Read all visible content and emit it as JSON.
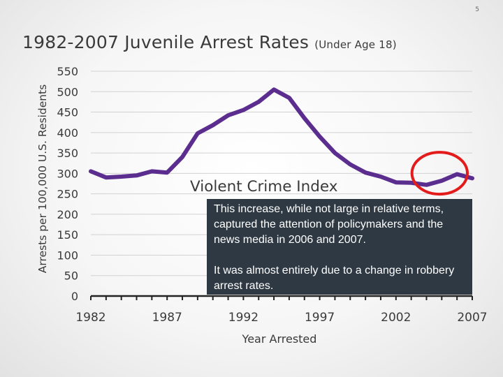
{
  "slide": {
    "number": "5"
  },
  "title": {
    "main": "1982-2007 Juvenile Arrest Rates",
    "sub": "(Under Age 18)"
  },
  "callout": {
    "paragraph1": "This increase, while not large in relative terms, captured the attention of policymakers and the news media in 2006 and 2007.",
    "paragraph2": "It was almost entirely due to a change in robbery arrest rates."
  },
  "colors": {
    "line": "#5b2d8e",
    "highlight_circle": "#e41b1b",
    "callout_bg": "#2e3944"
  },
  "chart_data": {
    "type": "line",
    "title": "1982-2007 Juvenile Arrest Rates (Under Age 18)",
    "xlabel": "Year Arrested",
    "ylabel": "Arrests per 100,000 U.S. Residents",
    "xlim": [
      1982,
      2007
    ],
    "ylim": [
      0,
      550
    ],
    "x_ticks": [
      1982,
      1987,
      1992,
      1997,
      2002,
      2007
    ],
    "y_ticks": [
      0,
      50,
      100,
      150,
      200,
      250,
      300,
      350,
      400,
      450,
      500,
      550
    ],
    "grid": true,
    "series": [
      {
        "name": "Violent Crime Index",
        "x": [
          1982,
          1983,
          1984,
          1985,
          1986,
          1987,
          1988,
          1989,
          1990,
          1991,
          1992,
          1993,
          1994,
          1995,
          1996,
          1997,
          1998,
          1999,
          2000,
          2001,
          2002,
          2003,
          2004,
          2005,
          2006,
          2007
        ],
        "y": [
          305,
          290,
          292,
          295,
          305,
          302,
          340,
          398,
          418,
          442,
          455,
          475,
          505,
          485,
          435,
          390,
          350,
          322,
          302,
          292,
          278,
          277,
          272,
          282,
          298,
          288
        ]
      }
    ],
    "annotations": [
      {
        "type": "circle",
        "label": "",
        "x_range": [
          2003,
          2007
        ],
        "y_center": 280
      }
    ]
  }
}
